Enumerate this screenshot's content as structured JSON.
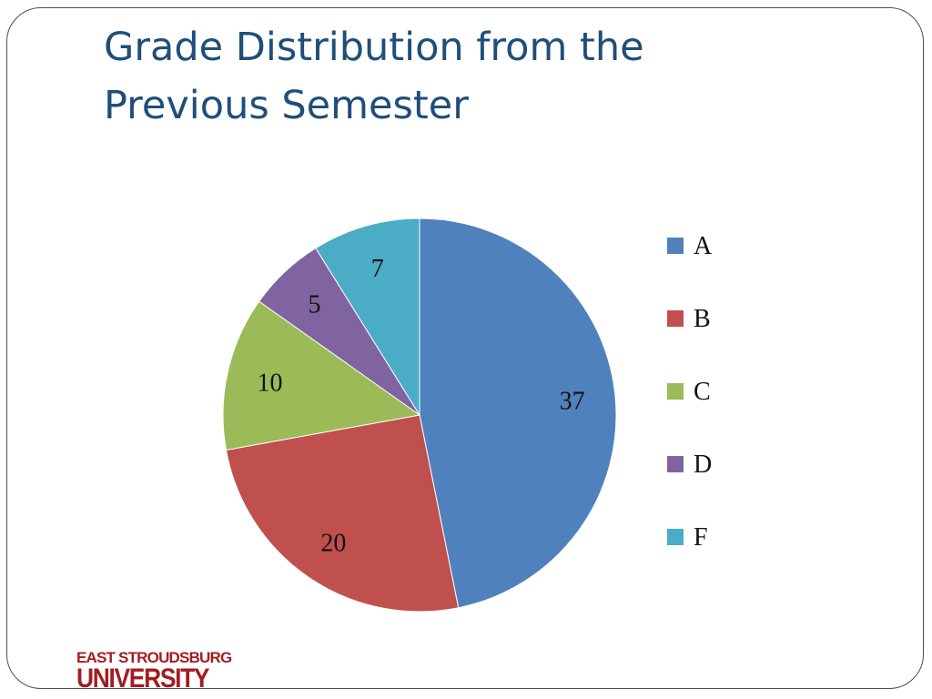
{
  "slide": {
    "title_line1": "Grade Distribution from the",
    "title_line2": "Previous Semester"
  },
  "logo": {
    "line1": "EAST STROUDSBURG",
    "line2": "UNIVERSITY",
    "color": "#a21d21"
  },
  "chart_data": {
    "type": "pie",
    "title": "Grade Distribution from the Previous Semester",
    "categories": [
      "A",
      "B",
      "C",
      "D",
      "F"
    ],
    "values": [
      37,
      20,
      10,
      5,
      7
    ],
    "colors": [
      "#4f81bd",
      "#c0504d",
      "#9bbb59",
      "#8064a2",
      "#4bacc6"
    ],
    "data_labels": [
      "37",
      "20",
      "10",
      "5",
      "7"
    ],
    "start_angle": "12 o'clock",
    "direction": "clockwise",
    "legend": {
      "placement": "right",
      "entries": [
        "A",
        "B",
        "C",
        "D",
        "F"
      ]
    }
  }
}
